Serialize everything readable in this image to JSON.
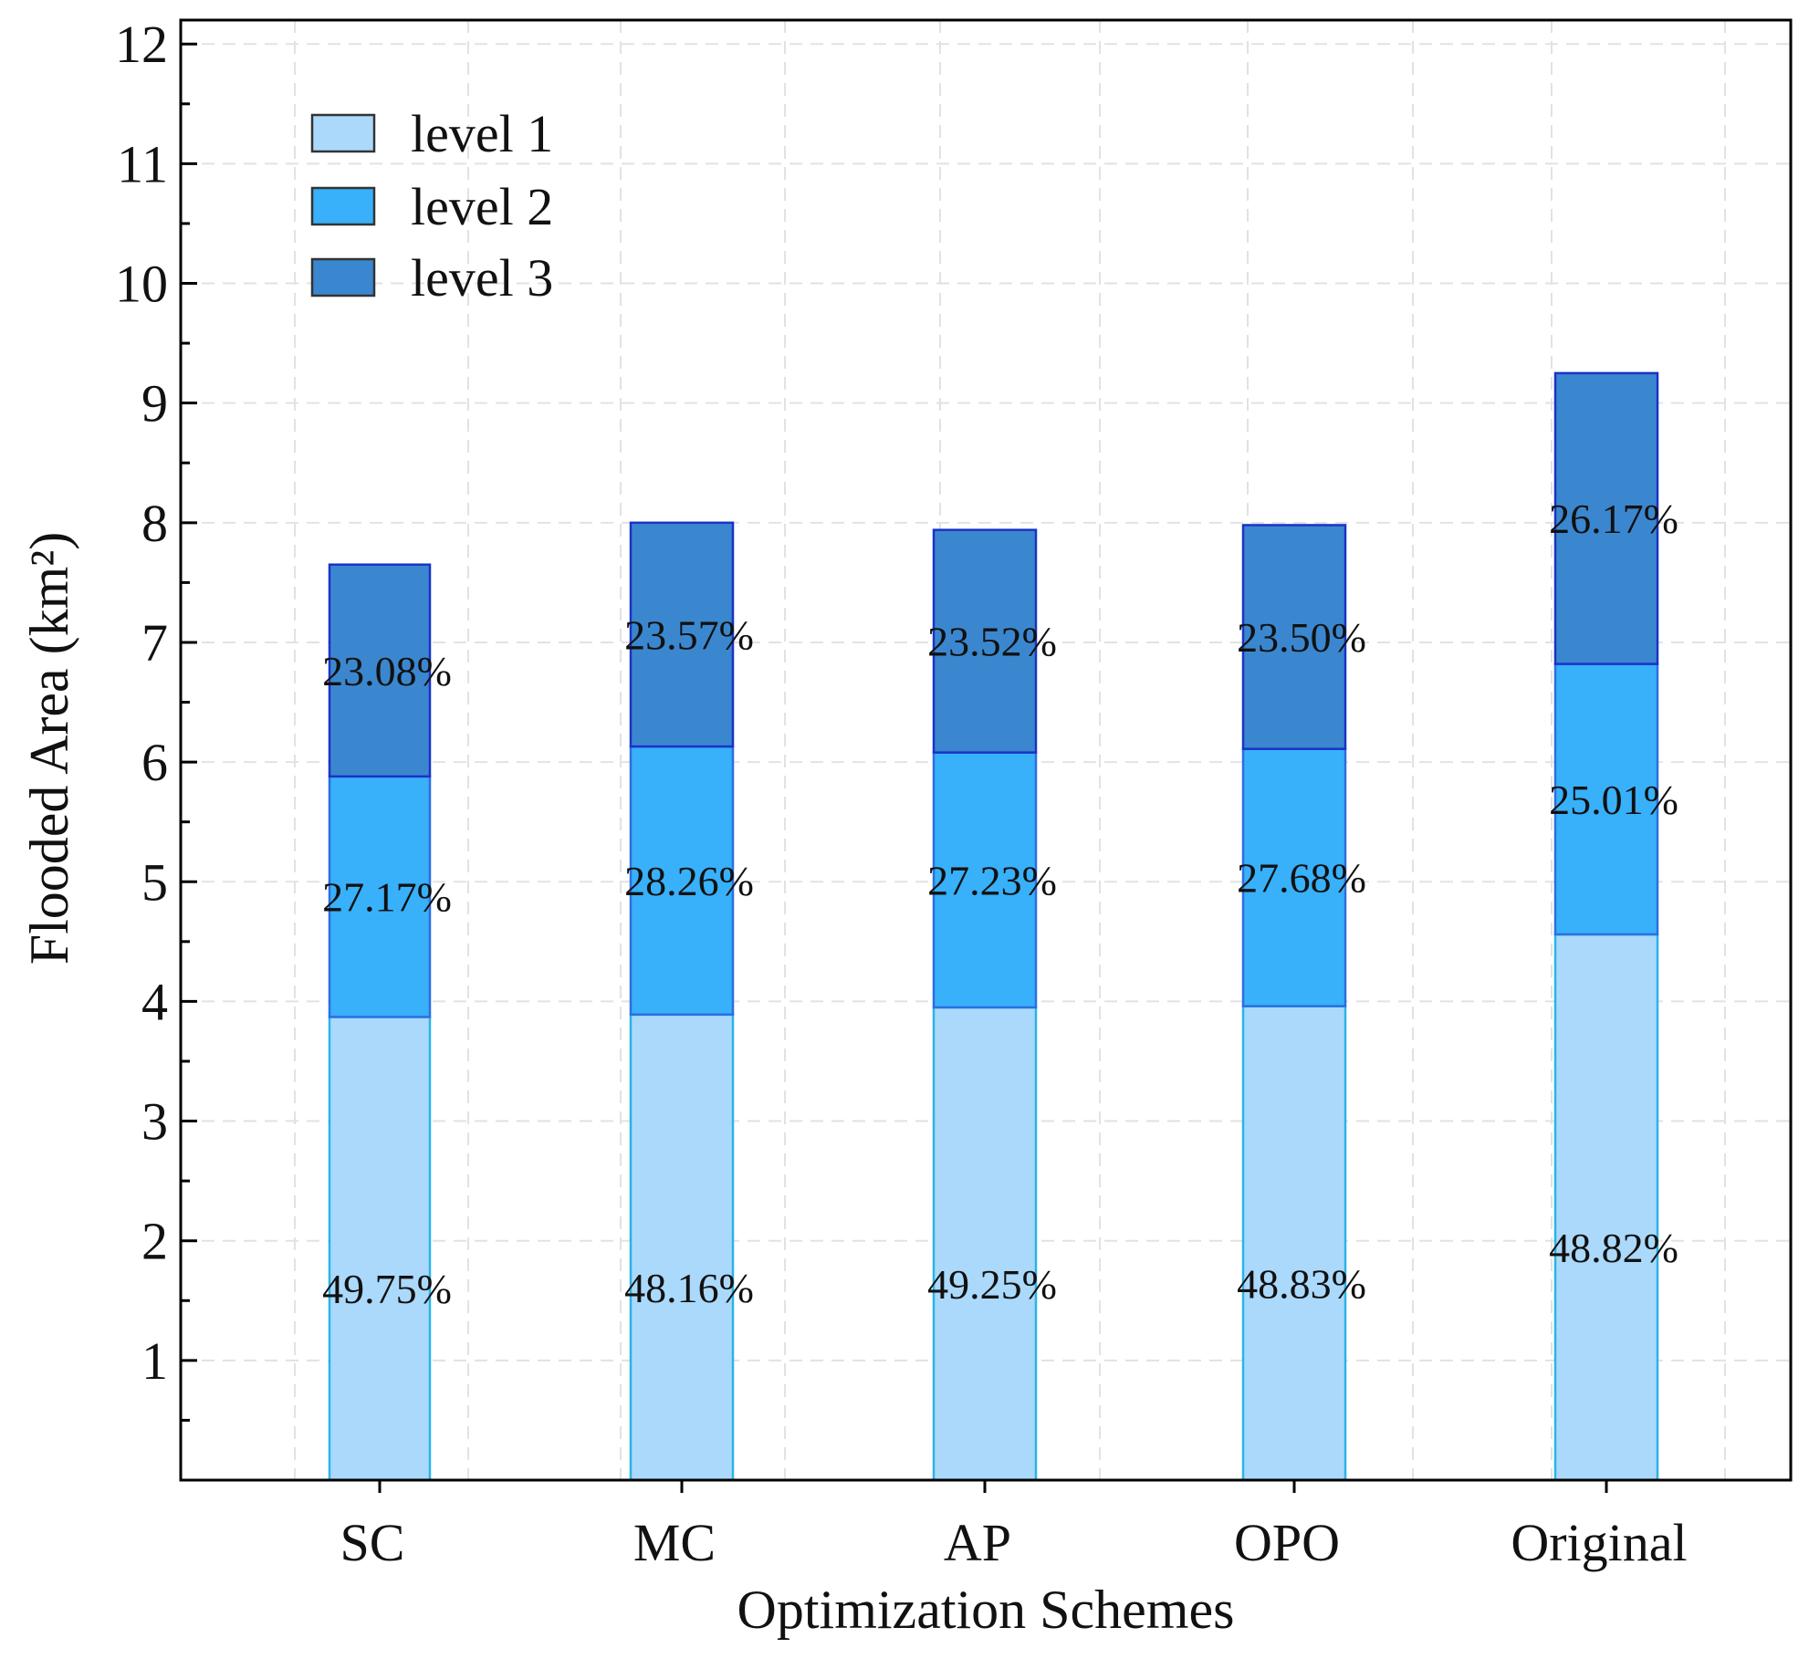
{
  "chart_data": {
    "type": "bar",
    "stacked": true,
    "title": "",
    "xlabel": "Optimization Schemes",
    "ylabel": "Flooded Area (km²)",
    "ylim": [
      0,
      12.2
    ],
    "yticks": [
      1,
      2,
      3,
      4,
      5,
      6,
      7,
      8,
      9,
      10,
      11,
      12
    ],
    "grid": true,
    "legend_position": "top-left",
    "categories": [
      "SC",
      "MC",
      "AP",
      "OPO",
      "Original"
    ],
    "series": [
      {
        "name": "level 1",
        "color": "#abd9fb",
        "edge": "#2ab4e6",
        "values": [
          3.87,
          3.89,
          3.95,
          3.96,
          4.56
        ],
        "labels": [
          "49.75%",
          "48.16%",
          "49.25%",
          "48.83%",
          "48.82%"
        ]
      },
      {
        "name": "level 2",
        "color": "#38b0fa",
        "edge": "#2b6fe0",
        "values": [
          2.01,
          2.24,
          2.13,
          2.15,
          2.26
        ],
        "labels": [
          "27.17%",
          "28.26%",
          "27.23%",
          "27.68%",
          "25.01%"
        ]
      },
      {
        "name": "level 3",
        "color": "#3b87cf",
        "edge": "#1a33c8",
        "values": [
          1.77,
          1.87,
          1.86,
          1.87,
          2.43
        ],
        "labels": [
          "23.08%",
          "23.57%",
          "23.52%",
          "23.50%",
          "26.17%"
        ]
      }
    ]
  }
}
